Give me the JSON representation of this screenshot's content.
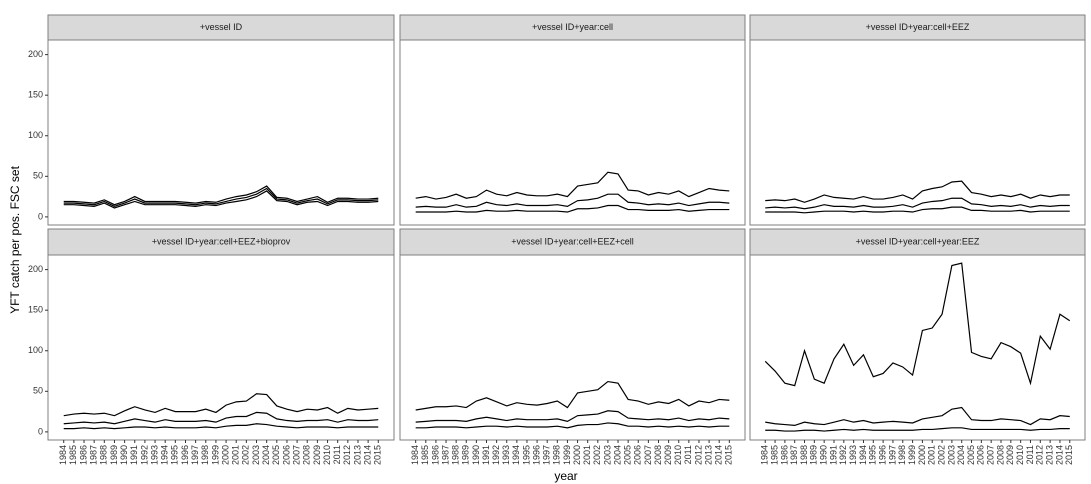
{
  "chart_data": {
    "type": "line",
    "ylabel": "YFT catch per pos. FSC set",
    "xlabel": "year",
    "x": [
      1984,
      1985,
      1986,
      1987,
      1988,
      1989,
      1990,
      1991,
      1992,
      1993,
      1994,
      1995,
      1996,
      1997,
      1998,
      1999,
      2000,
      2001,
      2002,
      2003,
      2004,
      2005,
      2006,
      2007,
      2008,
      2009,
      2010,
      2011,
      2012,
      2013,
      2014,
      2015
    ],
    "xticks": [
      1984,
      1985,
      1986,
      1987,
      1988,
      1989,
      1990,
      1991,
      1992,
      1993,
      1994,
      1995,
      1996,
      1997,
      1998,
      1999,
      2000,
      2001,
      2002,
      2003,
      2004,
      2005,
      2006,
      2007,
      2008,
      2009,
      2010,
      2011,
      2012,
      2013,
      2014,
      2015
    ],
    "xlim": [
      1982.45,
      2016.55
    ],
    "ylim": [
      -10,
      218
    ],
    "yticks": [
      0,
      50,
      100,
      150,
      200
    ],
    "grid": false,
    "facets": [
      {
        "title": "+vessel ID",
        "series": [
          {
            "color": "#000000",
            "values": [
              19,
              19,
              18,
              17,
              21,
              15,
              19,
              25,
              19,
              19,
              19,
              19,
              18,
              17,
              19,
              18,
              22,
              25,
              27,
              31,
              38,
              24,
              23,
              19,
              22,
              25,
              18,
              23,
              23,
              22,
              22,
              23
            ]
          },
          {
            "color": "#000000",
            "values": [
              17,
              17,
              16,
              15,
              19,
              13,
              17,
              22,
              17,
              17,
              17,
              17,
              16,
              15,
              17,
              16,
              19,
              22,
              24,
              28,
              35,
              22,
              21,
              17,
              20,
              22,
              16,
              21,
              21,
              20,
              20,
              21
            ]
          },
          {
            "color": "#000000",
            "values": [
              15,
              15,
              14,
              13,
              17,
              11,
              15,
              19,
              15,
              15,
              15,
              15,
              14,
              13,
              15,
              14,
              17,
              19,
              21,
              25,
              32,
              20,
              19,
              15,
              18,
              19,
              14,
              19,
              19,
              18,
              18,
              19
            ]
          }
        ]
      },
      {
        "title": "+vessel ID+year:cell",
        "series": [
          {
            "color": "#000000",
            "values": [
              23,
              25,
              22,
              24,
              28,
              23,
              25,
              33,
              28,
              26,
              30,
              27,
              26,
              26,
              28,
              25,
              38,
              40,
              42,
              55,
              53,
              33,
              32,
              27,
              30,
              28,
              32,
              25,
              30,
              35,
              33,
              32
            ]
          },
          {
            "color": "#000000",
            "values": [
              12,
              13,
              12,
              12,
              15,
              12,
              13,
              18,
              15,
              14,
              16,
              14,
              14,
              14,
              15,
              13,
              20,
              21,
              23,
              28,
              28,
              18,
              17,
              15,
              16,
              15,
              17,
              14,
              16,
              18,
              18,
              17
            ]
          },
          {
            "color": "#000000",
            "values": [
              6,
              6,
              6,
              6,
              7,
              6,
              6,
              8,
              7,
              7,
              8,
              7,
              7,
              7,
              7,
              6,
              10,
              10,
              11,
              14,
              14,
              9,
              9,
              8,
              8,
              8,
              9,
              7,
              8,
              9,
              9,
              9
            ]
          }
        ]
      },
      {
        "title": "+vessel ID+year:cell+EEZ",
        "series": [
          {
            "color": "#000000",
            "values": [
              20,
              21,
              20,
              22,
              18,
              22,
              27,
              24,
              23,
              22,
              25,
              22,
              22,
              24,
              27,
              22,
              32,
              35,
              37,
              43,
              44,
              30,
              28,
              25,
              27,
              25,
              28,
              23,
              27,
              25,
              27,
              27
            ]
          },
          {
            "color": "#000000",
            "values": [
              11,
              12,
              11,
              12,
              10,
              12,
              15,
              13,
              13,
              12,
              14,
              12,
              12,
              13,
              15,
              12,
              17,
              19,
              20,
              23,
              23,
              16,
              15,
              13,
              14,
              13,
              15,
              12,
              14,
              13,
              14,
              14
            ]
          },
          {
            "color": "#000000",
            "values": [
              6,
              6,
              6,
              6,
              5,
              6,
              7,
              7,
              7,
              6,
              7,
              6,
              6,
              7,
              7,
              6,
              9,
              10,
              10,
              12,
              12,
              8,
              8,
              7,
              7,
              7,
              8,
              6,
              7,
              7,
              7,
              7
            ]
          }
        ]
      },
      {
        "title": "+vessel ID+year:cell+EEZ+bioprov",
        "series": [
          {
            "color": "#000000",
            "values": [
              20,
              22,
              23,
              22,
              23,
              20,
              26,
              31,
              27,
              24,
              29,
              25,
              25,
              25,
              28,
              24,
              33,
              37,
              38,
              47,
              46,
              32,
              28,
              25,
              28,
              27,
              30,
              23,
              29,
              27,
              28,
              29
            ]
          },
          {
            "color": "#000000",
            "values": [
              10,
              11,
              12,
              11,
              12,
              10,
              13,
              16,
              14,
              12,
              15,
              13,
              13,
              13,
              14,
              12,
              17,
              19,
              19,
              24,
              23,
              16,
              14,
              13,
              14,
              14,
              15,
              12,
              15,
              14,
              14,
              15
            ]
          },
          {
            "color": "#000000",
            "values": [
              4,
              4,
              5,
              4,
              5,
              4,
              5,
              6,
              6,
              5,
              6,
              5,
              5,
              5,
              6,
              5,
              7,
              8,
              8,
              10,
              9,
              7,
              6,
              5,
              6,
              6,
              6,
              5,
              6,
              6,
              6,
              6
            ]
          }
        ]
      },
      {
        "title": "+vessel ID+year:cell+EEZ+cell",
        "series": [
          {
            "color": "#000000",
            "values": [
              27,
              29,
              31,
              31,
              32,
              30,
              38,
              42,
              37,
              32,
              36,
              34,
              33,
              35,
              38,
              30,
              48,
              50,
              52,
              62,
              60,
              40,
              38,
              34,
              37,
              35,
              40,
              32,
              38,
              36,
              40,
              39
            ]
          },
          {
            "color": "#000000",
            "values": [
              12,
              13,
              14,
              14,
              14,
              13,
              16,
              18,
              16,
              14,
              16,
              15,
              15,
              15,
              16,
              13,
              20,
              21,
              22,
              26,
              25,
              17,
              16,
              15,
              16,
              15,
              17,
              14,
              16,
              15,
              17,
              16
            ]
          },
          {
            "color": "#000000",
            "values": [
              5,
              5,
              6,
              6,
              6,
              5,
              6,
              7,
              7,
              6,
              7,
              6,
              6,
              6,
              7,
              5,
              8,
              9,
              9,
              11,
              10,
              7,
              7,
              6,
              7,
              6,
              7,
              6,
              7,
              6,
              7,
              7
            ]
          }
        ]
      },
      {
        "title": "+vessel ID+year:cell+year:EEZ",
        "series": [
          {
            "color": "#000000",
            "values": [
              87,
              75,
              60,
              57,
              100,
              65,
              60,
              90,
              108,
              82,
              95,
              68,
              72,
              85,
              80,
              70,
              125,
              128,
              145,
              205,
              208,
              98,
              93,
              90,
              110,
              105,
              97,
              60,
              118,
              102,
              145,
              137
            ]
          },
          {
            "color": "#000000",
            "values": [
              12,
              10,
              9,
              8,
              12,
              10,
              9,
              12,
              15,
              12,
              14,
              11,
              12,
              13,
              12,
              11,
              16,
              18,
              20,
              28,
              30,
              15,
              14,
              14,
              16,
              15,
              14,
              9,
              16,
              15,
              20,
              19
            ]
          },
          {
            "color": "#000000",
            "values": [
              2,
              2,
              1,
              1,
              2,
              2,
              1,
              2,
              3,
              2,
              3,
              2,
              2,
              2,
              2,
              2,
              3,
              3,
              4,
              5,
              5,
              3,
              3,
              3,
              3,
              3,
              3,
              2,
              3,
              3,
              4,
              4
            ]
          }
        ]
      }
    ]
  }
}
